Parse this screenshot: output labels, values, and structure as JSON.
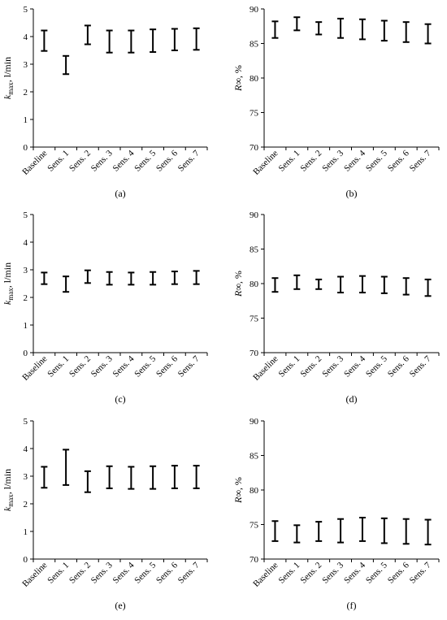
{
  "chart_data": [
    {
      "panel": "(a)",
      "type": "errorbar",
      "ylabel": {
        "main": "k",
        "sub": "max",
        "rest": ", l/min"
      },
      "ylim": [
        0,
        5
      ],
      "yticks": [
        0,
        1,
        2,
        3,
        4,
        5
      ],
      "categories": [
        "Baseline",
        "Sens. 1",
        "Sens. 2",
        "Sens. 3",
        "Sens. 4",
        "Sens. 5",
        "Sens. 6",
        "Sens. 7"
      ],
      "low": [
        3.48,
        2.64,
        3.72,
        3.42,
        3.42,
        3.44,
        3.5,
        3.52
      ],
      "high": [
        4.22,
        3.3,
        4.4,
        4.22,
        4.22,
        4.26,
        4.28,
        4.3
      ]
    },
    {
      "panel": "(b)",
      "type": "errorbar",
      "ylabel": {
        "main": "R∞",
        "sub": "",
        "rest": ", %"
      },
      "ylim": [
        70,
        90
      ],
      "yticks": [
        70,
        75,
        80,
        85,
        90
      ],
      "categories": [
        "Baseline",
        "Sens. 1",
        "Sens. 2",
        "Sens. 3",
        "Sens. 4",
        "Sens. 5",
        "Sens. 6",
        "Sens. 7"
      ],
      "low": [
        85.8,
        86.9,
        86.3,
        85.8,
        85.6,
        85.4,
        85.2,
        85.0
      ],
      "high": [
        88.2,
        88.8,
        88.1,
        88.6,
        88.5,
        88.3,
        88.1,
        87.8
      ]
    },
    {
      "panel": "(c)",
      "type": "errorbar",
      "ylabel": {
        "main": "k",
        "sub": "max",
        "rest": ", l/min"
      },
      "ylim": [
        0,
        5
      ],
      "yticks": [
        0,
        1,
        2,
        3,
        4,
        5
      ],
      "categories": [
        "Baseline",
        "Sens. 1",
        "Sens. 2",
        "Sens. 3",
        "Sens. 4",
        "Sens. 5",
        "Sens. 6",
        "Sens. 7"
      ],
      "low": [
        2.48,
        2.2,
        2.52,
        2.46,
        2.46,
        2.46,
        2.48,
        2.48
      ],
      "high": [
        2.9,
        2.76,
        2.98,
        2.92,
        2.9,
        2.92,
        2.94,
        2.96
      ]
    },
    {
      "panel": "(d)",
      "type": "errorbar",
      "ylabel": {
        "main": "R∞",
        "sub": "",
        "rest": ", %"
      },
      "ylim": [
        70,
        90
      ],
      "yticks": [
        70,
        75,
        80,
        85,
        90
      ],
      "categories": [
        "Baseline",
        "Sens. 1",
        "Sens. 2",
        "Sens. 3",
        "Sens. 4",
        "Sens. 5",
        "Sens. 6",
        "Sens. 7"
      ],
      "low": [
        78.8,
        79.2,
        79.2,
        78.7,
        78.7,
        78.6,
        78.4,
        78.2
      ],
      "high": [
        80.8,
        81.2,
        80.6,
        81.0,
        81.1,
        81.0,
        80.8,
        80.6
      ]
    },
    {
      "panel": "(e)",
      "type": "errorbar",
      "ylabel": {
        "main": "k",
        "sub": "max",
        "rest": ", l/min"
      },
      "ylim": [
        0,
        5
      ],
      "yticks": [
        0,
        1,
        2,
        3,
        4,
        5
      ],
      "categories": [
        "Baseline",
        "Sens. 1",
        "Sens. 2",
        "Sens. 3",
        "Sens. 4",
        "Sens. 5",
        "Sens. 6",
        "Sens. 7"
      ],
      "low": [
        2.58,
        2.68,
        2.42,
        2.56,
        2.54,
        2.54,
        2.56,
        2.56
      ],
      "high": [
        3.34,
        3.96,
        3.18,
        3.36,
        3.34,
        3.36,
        3.38,
        3.38
      ]
    },
    {
      "panel": "(f)",
      "type": "errorbar",
      "ylabel": {
        "main": "R∞",
        "sub": "",
        "rest": ", %"
      },
      "ylim": [
        70,
        90
      ],
      "yticks": [
        70,
        75,
        80,
        85,
        90
      ],
      "categories": [
        "Baseline",
        "Sens. 1",
        "Sens. 2",
        "Sens. 3",
        "Sens. 4",
        "Sens. 5",
        "Sens. 6",
        "Sens. 7"
      ],
      "low": [
        72.6,
        72.4,
        72.6,
        72.4,
        72.6,
        72.3,
        72.2,
        72.1
      ],
      "high": [
        75.5,
        74.9,
        75.4,
        75.8,
        76.0,
        75.9,
        75.8,
        75.7
      ]
    }
  ]
}
